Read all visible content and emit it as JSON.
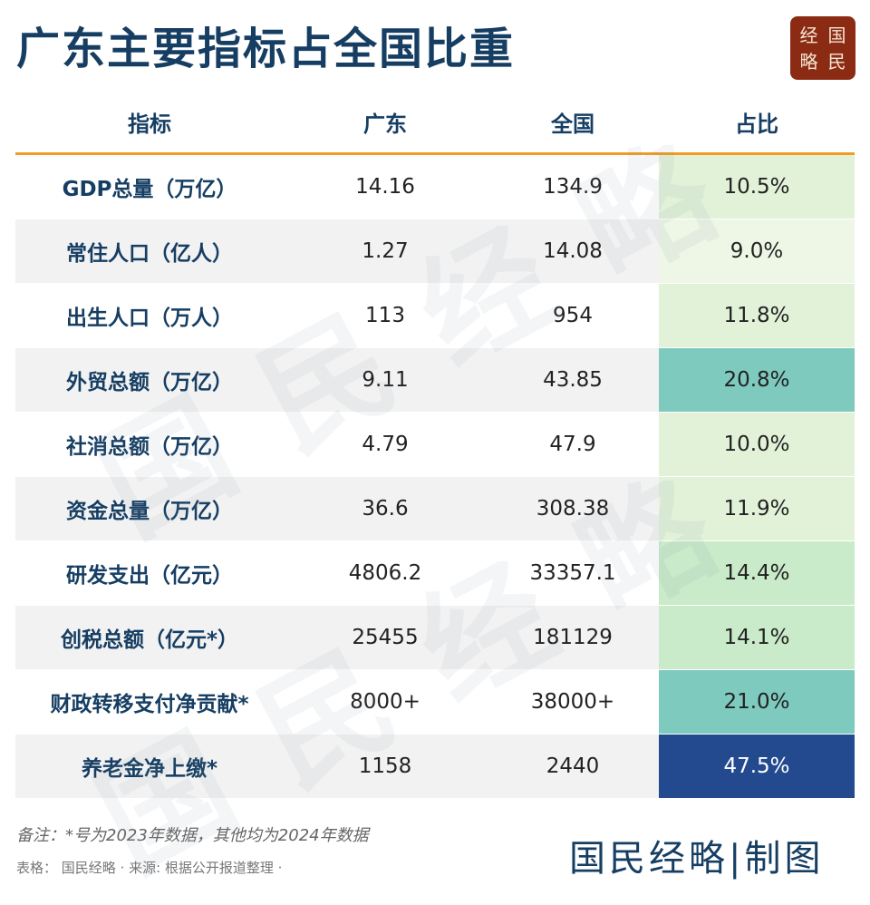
{
  "title": "广东主要指标占全国比重",
  "logo": {
    "chars": [
      "经",
      "国",
      "略",
      "民"
    ]
  },
  "watermark": "国民经略",
  "chart_data": {
    "type": "table",
    "columns": [
      "指标",
      "广东",
      "全国",
      "占比"
    ],
    "rows": [
      {
        "label": "GDP总量（万亿）",
        "guangdong": "14.16",
        "national": "134.9",
        "share": "10.5%",
        "share_value": 10.5
      },
      {
        "label": "常住人口（亿人）",
        "guangdong": "1.27",
        "national": "14.08",
        "share": "9.0%",
        "share_value": 9.0
      },
      {
        "label": "出生人口（万人）",
        "guangdong": "113",
        "national": "954",
        "share": "11.8%",
        "share_value": 11.8
      },
      {
        "label": "外贸总额（万亿）",
        "guangdong": "9.11",
        "national": "43.85",
        "share": "20.8%",
        "share_value": 20.8
      },
      {
        "label": "社消总额（万亿）",
        "guangdong": "4.79",
        "national": "47.9",
        "share": "10.0%",
        "share_value": 10.0
      },
      {
        "label": "资金总量（万亿）",
        "guangdong": "36.6",
        "national": "308.38",
        "share": "11.9%",
        "share_value": 11.9
      },
      {
        "label": "研发支出（亿元）",
        "guangdong": "4806.2",
        "national": "33357.1",
        "share": "14.4%",
        "share_value": 14.4
      },
      {
        "label": "创税总额（亿元*）",
        "guangdong": "25455",
        "national": "181129",
        "share": "14.1%",
        "share_value": 14.1
      },
      {
        "label": "财政转移支付净贡献*",
        "guangdong": "8000+",
        "national": "38000+",
        "share": "21.0%",
        "share_value": 21.0
      },
      {
        "label": "养老金净上缴*",
        "guangdong": "1158",
        "national": "2440",
        "share": "47.5%",
        "share_value": 47.5
      }
    ],
    "share_colors": {
      "light": "#eef7e6",
      "low": "#e2f2d9",
      "mid": "#c9ebc9",
      "high": "#7ecabe",
      "max": "#23498f"
    },
    "header_rule_color": "#f29a22"
  },
  "footer": {
    "note": "备注：*号为2023年数据，其他均为2024年数据",
    "source": "表格： 国民经略 · 来源: 根据公开报道整理 · ",
    "brand": "国民经略|制图"
  }
}
